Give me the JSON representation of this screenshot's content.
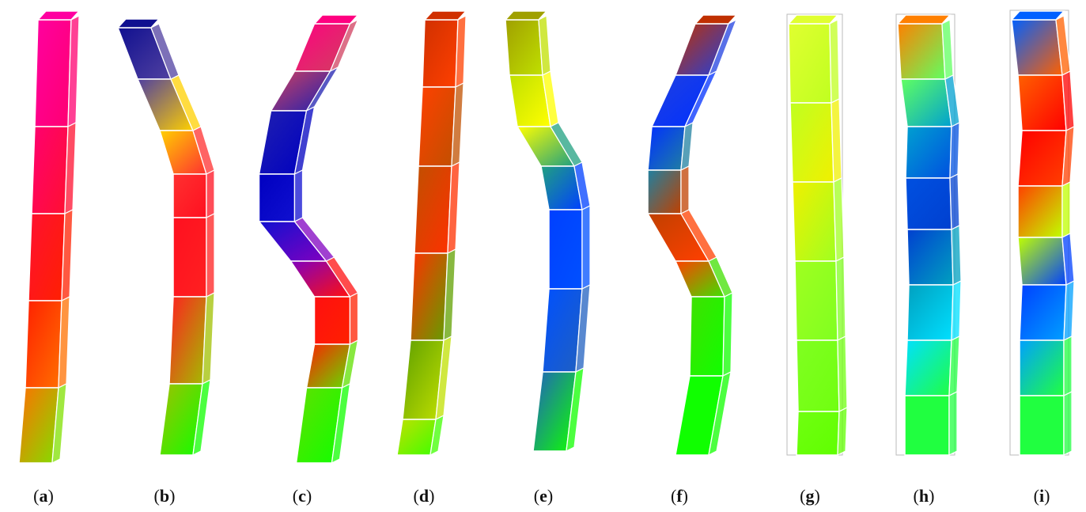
{
  "panels": [
    {
      "label": "a",
      "colors": [
        "#ff00a0",
        "#ff0070",
        "#ff1030",
        "#ff2000",
        "#ff7000",
        "#80e000",
        "#10ff00"
      ]
    },
    {
      "label": "b",
      "colors": [
        "#101090",
        "#5040a0",
        "#ffd000",
        "#ff3030",
        "#ff1020",
        "#ff2020",
        "#a0c000",
        "#10ff00"
      ]
    },
    {
      "label": "c",
      "colors": [
        "#ff0080",
        "#d04060",
        "#2020b0",
        "#0000c0",
        "#1010d0",
        "#8000c0",
        "#ff1010",
        "#ff2000",
        "#60e000",
        "#10ff00"
      ]
    },
    {
      "label": "d",
      "colors": [
        "#d03000",
        "#ff4000",
        "#c05000",
        "#ff3000",
        "#60a000",
        "#c0e000",
        "#40ff00",
        "#10ff00"
      ]
    },
    {
      "label": "e",
      "colors": [
        "#a0a000",
        "#c0e000",
        "#ffff00",
        "#20a080",
        "#0040ff",
        "#0050ff",
        "#2060c0",
        "#10ff00"
      ]
    },
    {
      "label": "f",
      "colors": [
        "#c03000",
        "#2040e0",
        "#0030ff",
        "#2080a0",
        "#c04000",
        "#ff4000",
        "#40e000",
        "#10ff00"
      ]
    },
    {
      "label": "g",
      "colors": [
        "#e0ff30",
        "#c0ff20",
        "#f0f000",
        "#a0ff20",
        "#80ff20",
        "#70ff10",
        "#60ff00",
        "#40ff00"
      ]
    },
    {
      "label": "h",
      "colors": [
        "#ff8000",
        "#60ff60",
        "#00a0d0",
        "#0050e0",
        "#0040d0",
        "#00a0c0",
        "#00e0ff",
        "#20ff40"
      ]
    },
    {
      "label": "i",
      "colors": [
        "#0060ff",
        "#ff6000",
        "#ff0000",
        "#ff4000",
        "#c0ff00",
        "#0040ff",
        "#00a0ff",
        "#20ff40"
      ]
    }
  ]
}
